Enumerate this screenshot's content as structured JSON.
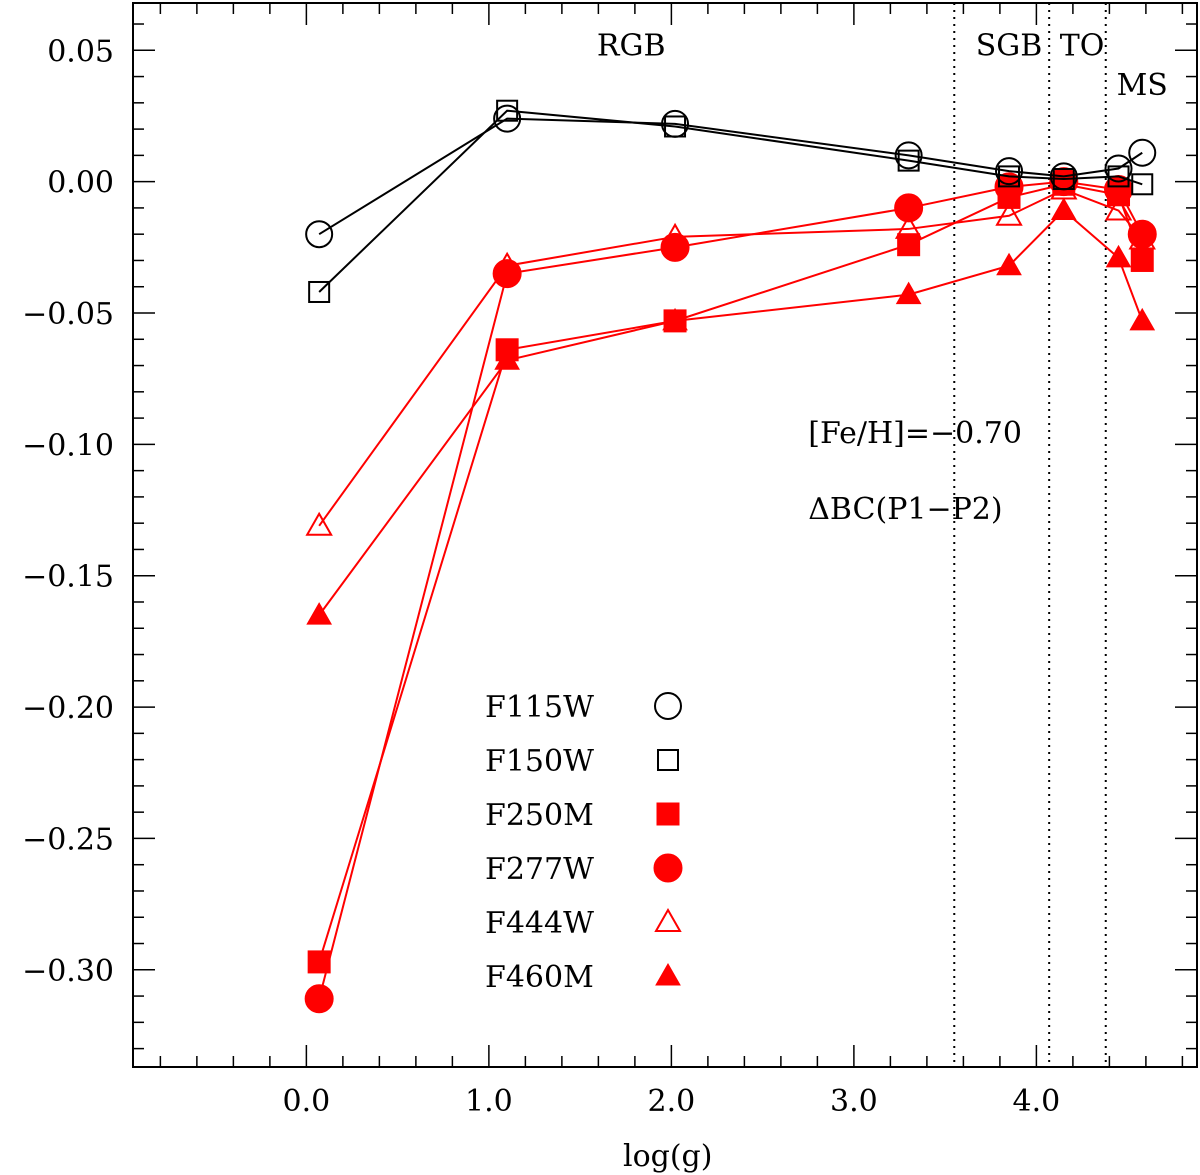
{
  "chart_data": {
    "type": "line",
    "xlabel": "log(g)",
    "ylabel": "",
    "xlim": [
      -0.95,
      4.88
    ],
    "ylim": [
      -0.337,
      0.068
    ],
    "x_ticks": [
      0.0,
      1.0,
      2.0,
      3.0,
      4.0
    ],
    "x_tick_labels": [
      "0.0",
      "1.0",
      "2.0",
      "3.0",
      "4.0"
    ],
    "y_ticks": [
      0.05,
      0.0,
      -0.05,
      -0.1,
      -0.15,
      -0.2,
      -0.25,
      -0.3
    ],
    "y_tick_labels": [
      "0.05",
      "0.00",
      "−0.05",
      "−0.10",
      "−0.15",
      "−0.20",
      "−0.25",
      "−0.30"
    ],
    "x_minor_step": 0.2,
    "y_minor_step": 0.01,
    "vertical_lines": [
      3.55,
      4.07,
      4.38
    ],
    "annotations": [
      {
        "text": "RGB",
        "x": 1.78,
        "y": 0.048
      },
      {
        "text": "SGB",
        "x": 3.85,
        "y": 0.048
      },
      {
        "text": "TO",
        "x": 4.25,
        "y": 0.048
      },
      {
        "text": "MS",
        "x": 4.58,
        "y": 0.033
      },
      {
        "text": "[Fe/H]=−0.70",
        "x": 2.75,
        "y": -0.0995
      },
      {
        "text": "ΔBC(P1−P2)",
        "x": 2.75,
        "y": -0.1285
      }
    ],
    "legend": {
      "position": "lower-center"
    },
    "series": [
      {
        "name": "F115W",
        "color": "#000000",
        "marker": "circle-open",
        "x": [
          0.07,
          1.1,
          2.02,
          3.3,
          3.85,
          4.15,
          4.45,
          4.58
        ],
        "y": [
          -0.02,
          0.024,
          0.022,
          0.01,
          0.004,
          0.002,
          0.005,
          0.011
        ]
      },
      {
        "name": "F150W",
        "color": "#000000",
        "marker": "square-open",
        "x": [
          0.07,
          1.1,
          2.02,
          3.3,
          3.85,
          4.15,
          4.45,
          4.58
        ],
        "y": [
          -0.042,
          0.027,
          0.021,
          0.008,
          0.002,
          0.001,
          0.002,
          -0.001
        ]
      },
      {
        "name": "F250M",
        "color": "#ff0000",
        "marker": "square-filled",
        "x": [
          0.07,
          1.1,
          2.02,
          3.3,
          3.85,
          4.15,
          4.45,
          4.58
        ],
        "y": [
          -0.297,
          -0.064,
          -0.053,
          -0.024,
          -0.006,
          -0.001,
          -0.005,
          -0.03
        ]
      },
      {
        "name": "F277W",
        "color": "#ff0000",
        "marker": "circle-filled",
        "x": [
          0.07,
          1.1,
          2.02,
          3.3,
          3.85,
          4.15,
          4.45,
          4.58
        ],
        "y": [
          -0.311,
          -0.035,
          -0.025,
          -0.01,
          -0.002,
          0.0,
          -0.003,
          -0.02
        ]
      },
      {
        "name": "F444W",
        "color": "#ff0000",
        "marker": "triangle-open",
        "x": [
          0.07,
          1.1,
          2.02,
          3.3,
          3.85,
          4.15,
          4.45,
          4.58
        ],
        "y": [
          -0.131,
          -0.032,
          -0.021,
          -0.018,
          -0.013,
          -0.003,
          -0.011,
          -0.022
        ]
      },
      {
        "name": "F460M",
        "color": "#ff0000",
        "marker": "triangle-filled",
        "x": [
          0.07,
          1.1,
          2.02,
          3.3,
          3.85,
          4.15,
          4.45,
          4.58
        ],
        "y": [
          -0.165,
          -0.068,
          -0.053,
          -0.043,
          -0.032,
          -0.011,
          -0.029,
          -0.053
        ]
      }
    ]
  }
}
